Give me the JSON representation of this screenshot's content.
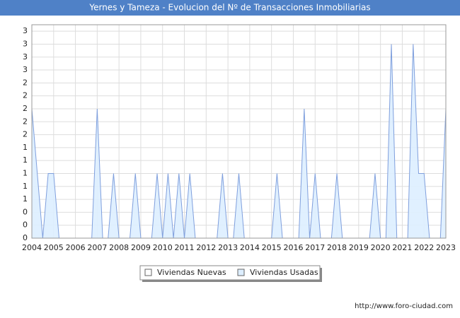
{
  "chart_data": {
    "type": "area",
    "title": "Yernes y Tameza - Evolucion del Nº de Transacciones Inmobiliarias",
    "footer": "http://www.foro-ciudad.com",
    "x": [
      2004,
      2004.25,
      2004.5,
      2004.75,
      2005,
      2005.25,
      2005.5,
      2005.75,
      2006,
      2006.25,
      2006.5,
      2006.75,
      2007,
      2007.25,
      2007.5,
      2007.75,
      2008,
      2008.25,
      2008.5,
      2008.75,
      2009,
      2009.25,
      2009.5,
      2009.75,
      2010,
      2010.25,
      2010.5,
      2010.75,
      2011,
      2011.25,
      2011.5,
      2011.75,
      2012,
      2012.25,
      2012.5,
      2012.75,
      2013,
      2013.25,
      2013.5,
      2013.75,
      2014,
      2014.25,
      2014.5,
      2014.75,
      2015,
      2015.25,
      2015.5,
      2015.75,
      2016,
      2016.25,
      2016.5,
      2016.75,
      2017,
      2017.25,
      2017.5,
      2017.75,
      2018,
      2018.25,
      2018.5,
      2018.75,
      2019,
      2019.25,
      2019.5,
      2019.75,
      2020,
      2020.25,
      2020.5,
      2020.75,
      2021,
      2021.25,
      2021.5,
      2021.75,
      2022,
      2022.25,
      2022.5,
      2022.75,
      2023
    ],
    "series": [
      {
        "name": "Viviendas Nuevas",
        "color": "#ffffff",
        "values": [
          0,
          0,
          0,
          0,
          0,
          0,
          0,
          0,
          0,
          0,
          0,
          0,
          0,
          0,
          0,
          0,
          0,
          0,
          0,
          0,
          0,
          0,
          0,
          0,
          0,
          0,
          0,
          0,
          0,
          0,
          0,
          0,
          0,
          0,
          0,
          0,
          0,
          0,
          0,
          0,
          0,
          0,
          0,
          0,
          0,
          0,
          0,
          0,
          0,
          0,
          0,
          0,
          0,
          0,
          0,
          0,
          0,
          0,
          0,
          0,
          0,
          0,
          0,
          0,
          0,
          0,
          0,
          0,
          0,
          0,
          0,
          0,
          0,
          0,
          0,
          0,
          0
        ]
      },
      {
        "name": "Viviendas Usadas",
        "color": "#ddeeff",
        "values": [
          2,
          1,
          0,
          1,
          1,
          0,
          0,
          0,
          0,
          0,
          0,
          0,
          2,
          0,
          0,
          1,
          0,
          0,
          0,
          1,
          0,
          0,
          0,
          1,
          0,
          1,
          0,
          1,
          0,
          1,
          0,
          0,
          0,
          0,
          0,
          1,
          0,
          0,
          1,
          0,
          0,
          0,
          0,
          0,
          0,
          1,
          0,
          0,
          0,
          0,
          2,
          0,
          1,
          0,
          0,
          0,
          1,
          0,
          0,
          0,
          0,
          0,
          0,
          1,
          0,
          0,
          3,
          0,
          0,
          0,
          3,
          1,
          1,
          0,
          0,
          0,
          2
        ]
      }
    ],
    "xlim": [
      2004,
      2023
    ],
    "xticks": [
      2004,
      2005,
      2006,
      2007,
      2008,
      2009,
      2010,
      2011,
      2012,
      2013,
      2014,
      2015,
      2016,
      2017,
      2018,
      2019,
      2020,
      2021,
      2022,
      2023
    ],
    "ylim": [
      0,
      3.3
    ],
    "yticks": [
      0,
      {
        "value": 0.2,
        "label": "0"
      },
      {
        "value": 0.4,
        "label": "0"
      },
      {
        "value": 0.6,
        "label": "1"
      },
      {
        "value": 0.8,
        "label": "1"
      },
      1,
      {
        "value": 1.2,
        "label": "1"
      },
      {
        "value": 1.4,
        "label": "1"
      },
      {
        "value": 1.6,
        "label": "2"
      },
      {
        "value": 1.8,
        "label": "2"
      },
      2,
      {
        "value": 2.2,
        "label": "2"
      },
      {
        "value": 2.4,
        "label": "2"
      },
      {
        "value": 2.6,
        "label": "3"
      },
      {
        "value": 2.8,
        "label": "3"
      },
      3,
      {
        "value": 3.2,
        "label": "3"
      }
    ],
    "grid": true
  }
}
